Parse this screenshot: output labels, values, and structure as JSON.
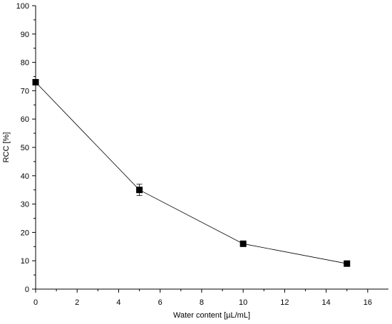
{
  "chart_data": {
    "type": "line",
    "xlabel": "Water content [µL/mL]",
    "ylabel": "RCC [%]",
    "xlim": [
      0,
      17
    ],
    "ylim": [
      0,
      100
    ],
    "x_ticks": [
      0,
      2,
      4,
      6,
      8,
      10,
      12,
      14,
      16
    ],
    "y_ticks": [
      0,
      10,
      20,
      30,
      40,
      50,
      60,
      70,
      80,
      90,
      100
    ],
    "grid": false,
    "series": [
      {
        "x": [
          0,
          5,
          10,
          15
        ],
        "y": [
          73,
          35,
          16,
          9
        ],
        "error": [
          0,
          2,
          0,
          0
        ],
        "marker": "square",
        "color": "#000000"
      }
    ]
  }
}
